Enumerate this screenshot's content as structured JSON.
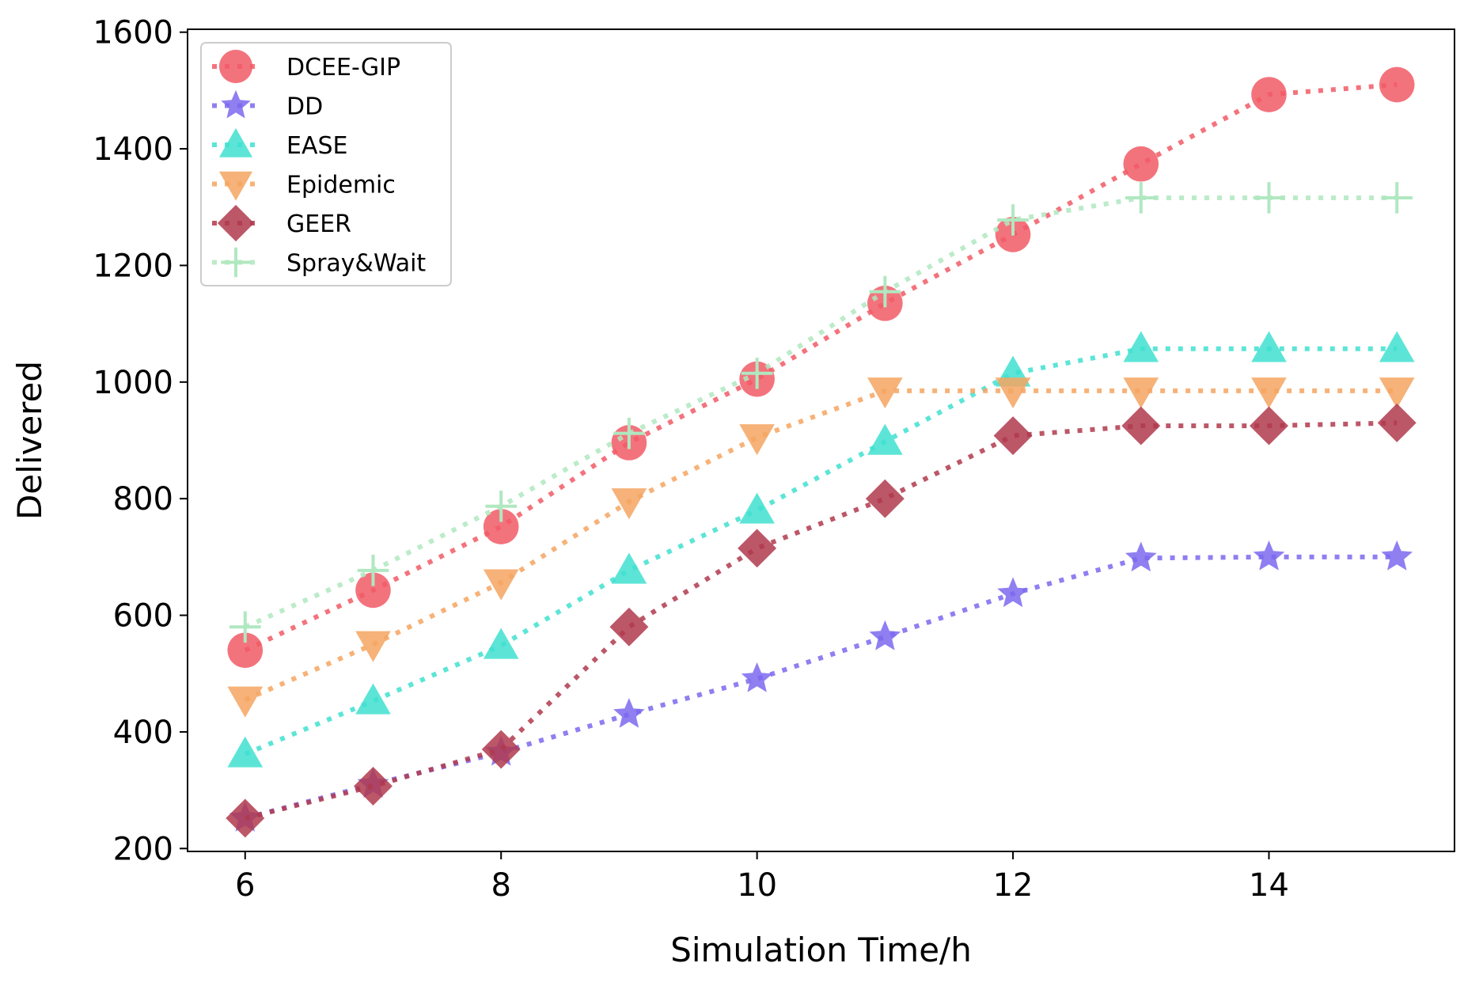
{
  "chart_data": {
    "type": "line",
    "title": "",
    "xlabel": "Simulation Time/h",
    "ylabel": "Delivered",
    "xlim": [
      5.55,
      15.45
    ],
    "ylim": [
      195,
      1605
    ],
    "xticks": [
      6,
      8,
      10,
      12,
      14
    ],
    "yticks": [
      200,
      400,
      600,
      800,
      1000,
      1200,
      1400,
      1600
    ],
    "grid": false,
    "legend_position": "top-left",
    "x": [
      6,
      7,
      8,
      9,
      10,
      11,
      12,
      13,
      14,
      15
    ],
    "series": [
      {
        "name": "DCEE-GIP",
        "marker": "circle",
        "color": "#f15a66",
        "values": [
          540,
          643,
          752,
          896,
          1005,
          1135,
          1253,
          1374,
          1493,
          1510
        ]
      },
      {
        "name": "DD",
        "marker": "star",
        "color": "#7b68ee",
        "values": [
          252,
          310,
          365,
          430,
          491,
          563,
          637,
          698,
          700,
          700
        ]
      },
      {
        "name": "EASE",
        "marker": "triangle-up",
        "color": "#40e0d0",
        "values": [
          362,
          453,
          548,
          677,
          780,
          898,
          1015,
          1057,
          1057,
          1057
        ]
      },
      {
        "name": "Epidemic",
        "marker": "triangle-down",
        "color": "#f4a460",
        "values": [
          455,
          550,
          656,
          795,
          905,
          985,
          985,
          985,
          985,
          985
        ]
      },
      {
        "name": "GEER",
        "marker": "diamond",
        "color": "#b03a4e",
        "values": [
          252,
          307,
          370,
          580,
          715,
          800,
          908,
          925,
          925,
          930
        ]
      },
      {
        "name": "Spray&Wait",
        "marker": "plus",
        "color": "#b0e8c0",
        "values": [
          580,
          677,
          787,
          912,
          1015,
          1155,
          1278,
          1316,
          1316,
          1316
        ]
      }
    ]
  }
}
